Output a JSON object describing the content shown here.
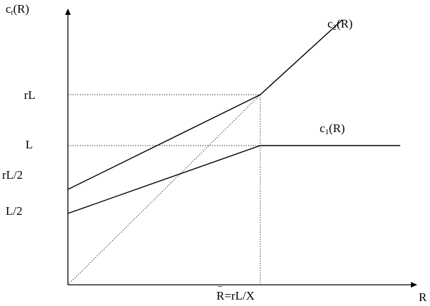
{
  "axis": {
    "y": {
      "base": "c",
      "sub": "t",
      "arg": "(R)"
    },
    "x": "R"
  },
  "ticks": {
    "rL": "rL",
    "L": "L",
    "rL_half": "rL/2",
    "L_half": "L/2"
  },
  "curves": {
    "c2": {
      "base": "c",
      "sub": "2",
      "arg": "(R)"
    },
    "c1": {
      "base": "c",
      "sub": "1",
      "arg": "(R)"
    }
  },
  "kink": {
    "bar": "_",
    "label": "R=rL/X"
  },
  "colors": {
    "ink": "#000000"
  }
}
